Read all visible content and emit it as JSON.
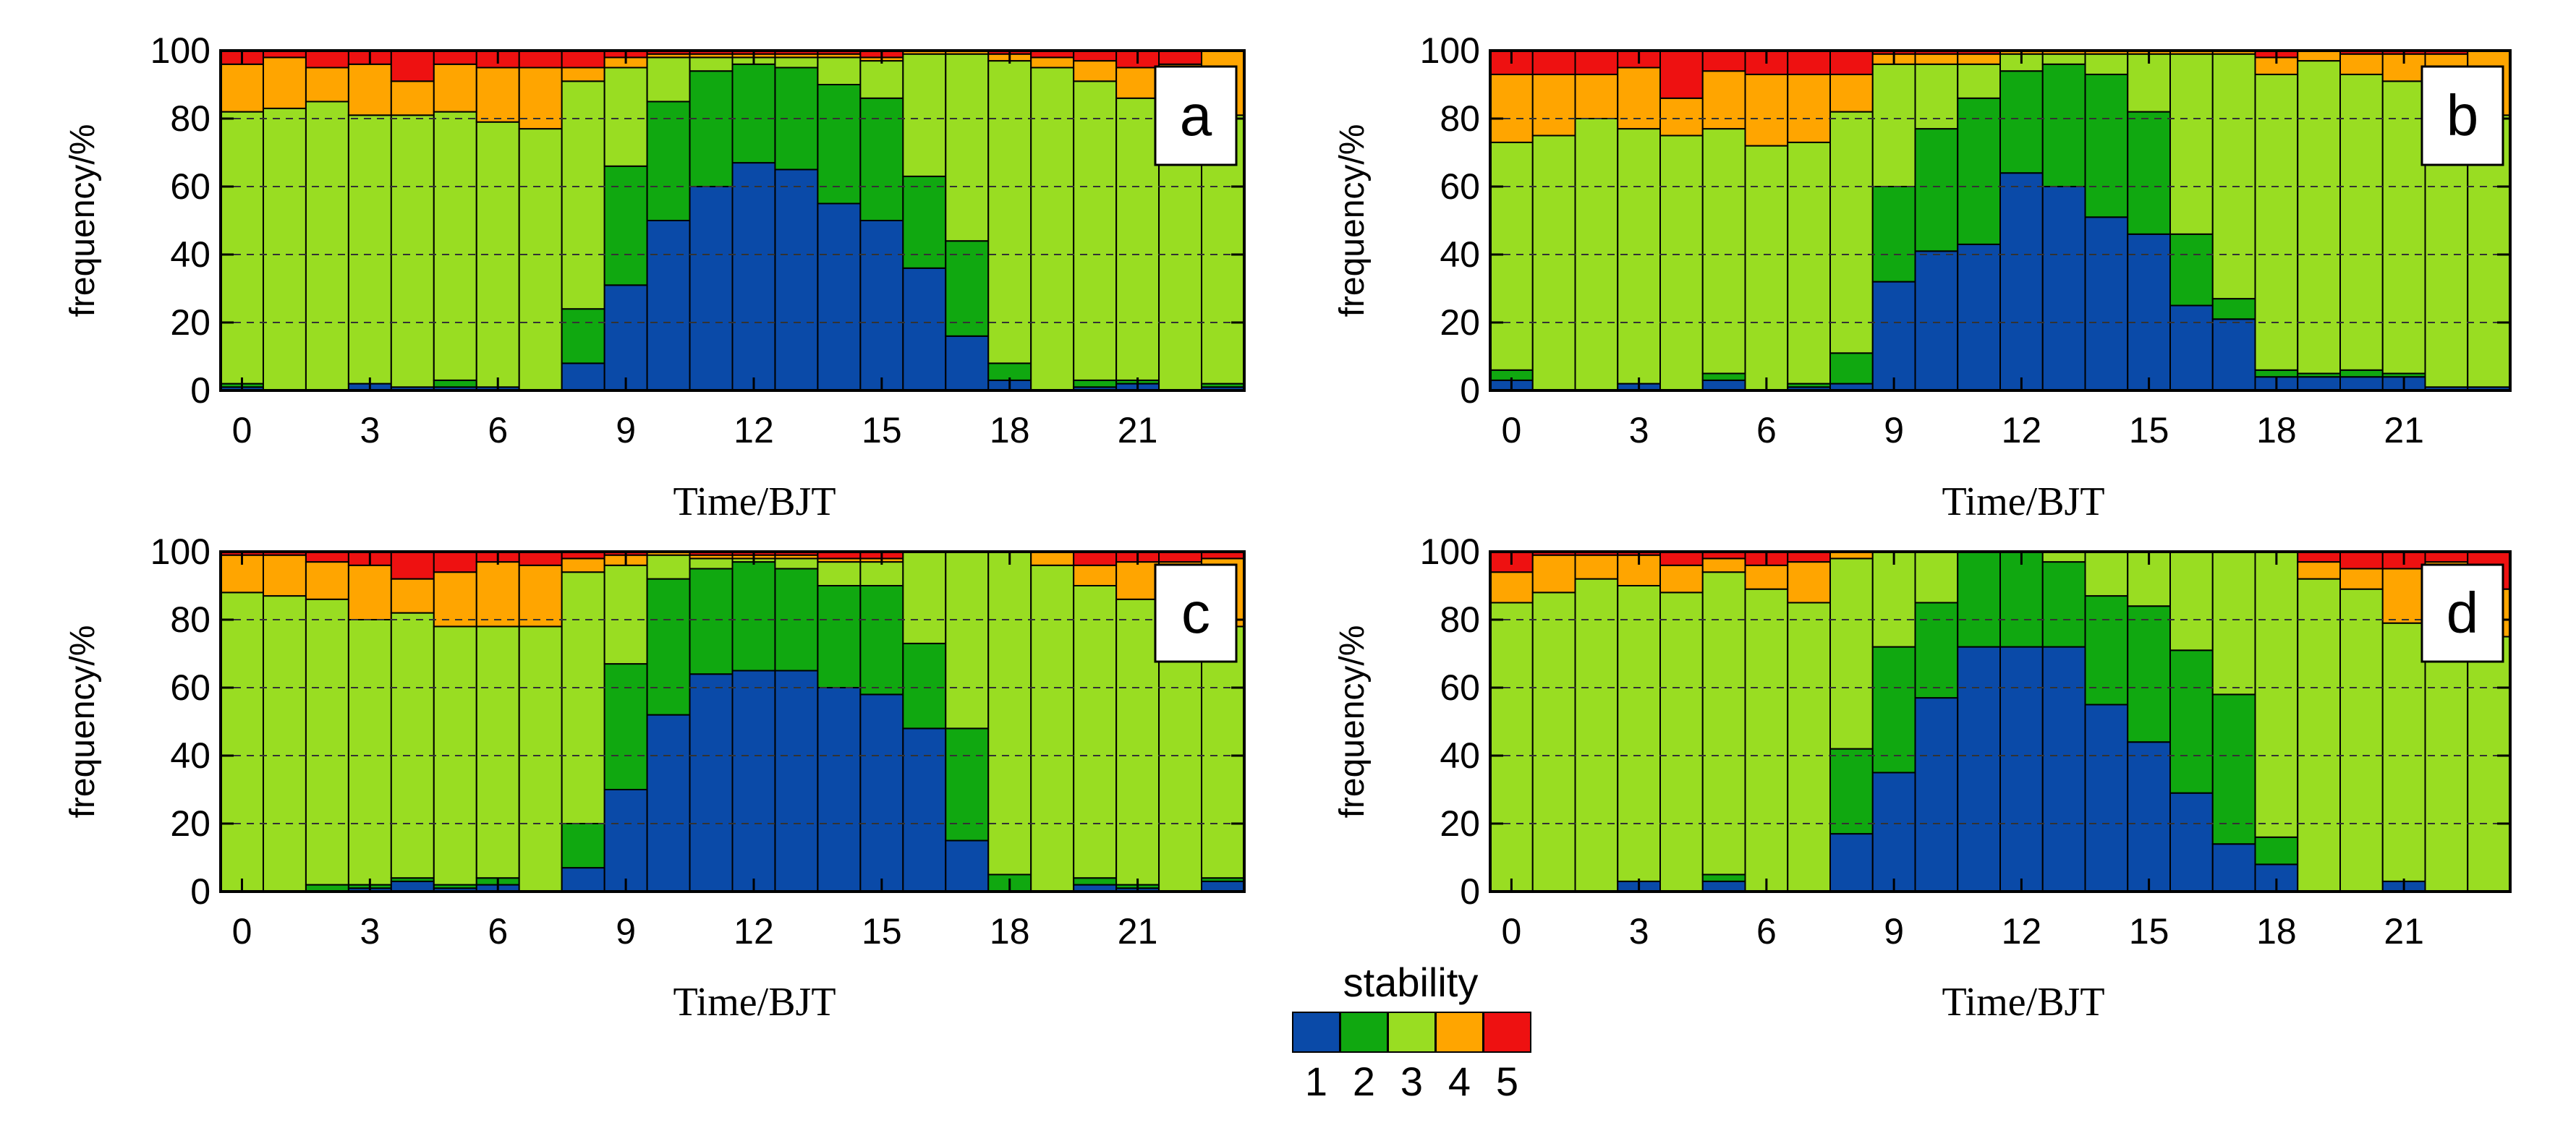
{
  "colors": {
    "1": "#0a4aa8",
    "2": "#10a810",
    "3": "#99dd22",
    "4": "#ffa500",
    "5": "#ee1111"
  },
  "legend": {
    "title": "stability",
    "labels": [
      "1",
      "2",
      "3",
      "4",
      "5"
    ]
  },
  "chart_data": [
    {
      "type": "bar",
      "stacked": true,
      "panel_label": "a",
      "ylabel": "frequency/%",
      "xlabel": "Time/BJT",
      "ylim": [
        0,
        100
      ],
      "yticks": [
        0,
        20,
        40,
        60,
        80,
        100
      ],
      "xticks": [
        0,
        3,
        6,
        9,
        12,
        15,
        18,
        21
      ],
      "categories": [
        0,
        1,
        2,
        3,
        4,
        5,
        6,
        7,
        8,
        9,
        10,
        11,
        12,
        13,
        14,
        15,
        16,
        17,
        18,
        19,
        20,
        21,
        22,
        23
      ],
      "series": [
        {
          "name": "1",
          "values": [
            1,
            0,
            0,
            2,
            1,
            1,
            1,
            0,
            8,
            31,
            50,
            60,
            67,
            65,
            55,
            50,
            36,
            16,
            3,
            0,
            1,
            2,
            0,
            1
          ]
        },
        {
          "name": "2",
          "values": [
            1,
            0,
            0,
            0,
            0,
            2,
            0,
            0,
            16,
            35,
            35,
            34,
            29,
            30,
            35,
            36,
            27,
            28,
            5,
            0,
            2,
            1,
            0,
            1
          ]
        },
        {
          "name": "3",
          "values": [
            80,
            83,
            85,
            79,
            80,
            79,
            78,
            77,
            67,
            29,
            13,
            4,
            2,
            3,
            8,
            11,
            36,
            55,
            89,
            95,
            88,
            83,
            82,
            79
          ]
        },
        {
          "name": "4",
          "values": [
            14,
            15,
            10,
            15,
            10,
            14,
            16,
            18,
            4,
            3,
            1,
            1,
            1,
            1,
            1,
            1,
            1,
            1,
            2,
            3,
            6,
            9,
            14,
            19
          ]
        },
        {
          "name": "5",
          "values": [
            4,
            2,
            5,
            4,
            9,
            4,
            5,
            5,
            5,
            2,
            1,
            1,
            1,
            1,
            1,
            2,
            0,
            0,
            1,
            2,
            3,
            5,
            4,
            0
          ]
        }
      ]
    },
    {
      "type": "bar",
      "stacked": true,
      "panel_label": "b",
      "ylabel": "frequency/%",
      "xlabel": "Time/BJT",
      "ylim": [
        0,
        100
      ],
      "yticks": [
        0,
        20,
        40,
        60,
        80,
        100
      ],
      "xticks": [
        0,
        3,
        6,
        9,
        12,
        15,
        18,
        21
      ],
      "categories": [
        0,
        1,
        2,
        3,
        4,
        5,
        6,
        7,
        8,
        9,
        10,
        11,
        12,
        13,
        14,
        15,
        16,
        17,
        18,
        19,
        20,
        21,
        22,
        23
      ],
      "series": [
        {
          "name": "1",
          "values": [
            3,
            0,
            0,
            2,
            0,
            3,
            0,
            1,
            2,
            32,
            41,
            43,
            64,
            60,
            51,
            46,
            25,
            21,
            4,
            4,
            4,
            4,
            1,
            1
          ]
        },
        {
          "name": "2",
          "values": [
            3,
            0,
            0,
            0,
            0,
            2,
            0,
            1,
            9,
            28,
            36,
            43,
            30,
            36,
            42,
            36,
            21,
            6,
            2,
            1,
            2,
            1,
            0,
            0
          ]
        },
        {
          "name": "3",
          "values": [
            67,
            75,
            80,
            75,
            75,
            72,
            72,
            71,
            71,
            36,
            19,
            10,
            5,
            3,
            6,
            17,
            53,
            72,
            87,
            92,
            87,
            86,
            85,
            80
          ]
        },
        {
          "name": "4",
          "values": [
            20,
            18,
            13,
            18,
            11,
            17,
            21,
            20,
            11,
            3,
            3,
            3,
            1,
            1,
            1,
            1,
            1,
            1,
            5,
            3,
            6,
            8,
            13,
            19
          ]
        },
        {
          "name": "5",
          "values": [
            7,
            7,
            7,
            5,
            14,
            6,
            7,
            7,
            7,
            1,
            1,
            1,
            0,
            0,
            0,
            0,
            0,
            0,
            2,
            0,
            1,
            1,
            1,
            0
          ]
        }
      ]
    },
    {
      "type": "bar",
      "stacked": true,
      "panel_label": "c",
      "ylabel": "frequency/%",
      "xlabel": "Time/BJT",
      "ylim": [
        0,
        100
      ],
      "yticks": [
        0,
        20,
        40,
        60,
        80,
        100
      ],
      "xticks": [
        0,
        3,
        6,
        9,
        12,
        15,
        18,
        21
      ],
      "categories": [
        0,
        1,
        2,
        3,
        4,
        5,
        6,
        7,
        8,
        9,
        10,
        11,
        12,
        13,
        14,
        15,
        16,
        17,
        18,
        19,
        20,
        21,
        22,
        23
      ],
      "series": [
        {
          "name": "1",
          "values": [
            0,
            0,
            0,
            1,
            3,
            1,
            2,
            0,
            7,
            30,
            52,
            64,
            65,
            65,
            60,
            58,
            48,
            15,
            0,
            0,
            2,
            1,
            0,
            3
          ]
        },
        {
          "name": "2",
          "values": [
            0,
            0,
            2,
            1,
            1,
            1,
            2,
            0,
            13,
            37,
            40,
            31,
            32,
            30,
            30,
            32,
            25,
            33,
            5,
            0,
            2,
            1,
            0,
            1
          ]
        },
        {
          "name": "3",
          "values": [
            88,
            87,
            84,
            78,
            78,
            76,
            74,
            78,
            74,
            29,
            7,
            3,
            1,
            3,
            7,
            7,
            27,
            52,
            95,
            96,
            86,
            84,
            80,
            74
          ]
        },
        {
          "name": "4",
          "values": [
            11,
            12,
            11,
            16,
            10,
            16,
            19,
            18,
            4,
            3,
            1,
            1,
            1,
            1,
            1,
            1,
            0,
            0,
            0,
            4,
            6,
            11,
            17,
            20
          ]
        },
        {
          "name": "5",
          "values": [
            1,
            1,
            3,
            4,
            8,
            6,
            3,
            4,
            2,
            1,
            0,
            1,
            1,
            1,
            2,
            2,
            0,
            0,
            0,
            0,
            4,
            3,
            3,
            2
          ]
        }
      ]
    },
    {
      "type": "bar",
      "stacked": true,
      "panel_label": "d",
      "ylabel": "frequency/%",
      "xlabel": "Time/BJT",
      "ylim": [
        0,
        100
      ],
      "yticks": [
        0,
        20,
        40,
        60,
        80,
        100
      ],
      "xticks": [
        0,
        3,
        6,
        9,
        12,
        15,
        18,
        21
      ],
      "categories": [
        0,
        1,
        2,
        3,
        4,
        5,
        6,
        7,
        8,
        9,
        10,
        11,
        12,
        13,
        14,
        15,
        16,
        17,
        18,
        19,
        20,
        21,
        22,
        23
      ],
      "series": [
        {
          "name": "1",
          "values": [
            0,
            0,
            0,
            3,
            0,
            3,
            0,
            0,
            17,
            35,
            57,
            72,
            72,
            72,
            55,
            44,
            29,
            14,
            8,
            0,
            0,
            3,
            0,
            0
          ]
        },
        {
          "name": "2",
          "values": [
            0,
            0,
            0,
            0,
            0,
            2,
            0,
            0,
            25,
            37,
            28,
            28,
            28,
            25,
            32,
            40,
            42,
            44,
            8,
            0,
            0,
            0,
            0,
            0
          ]
        },
        {
          "name": "3",
          "values": [
            85,
            88,
            92,
            87,
            88,
            89,
            89,
            85,
            56,
            28,
            15,
            0,
            0,
            3,
            13,
            16,
            29,
            42,
            84,
            92,
            89,
            76,
            79,
            75
          ]
        },
        {
          "name": "4",
          "values": [
            9,
            11,
            7,
            9,
            8,
            4,
            7,
            12,
            2,
            0,
            0,
            0,
            0,
            0,
            0,
            0,
            0,
            0,
            0,
            5,
            6,
            16,
            18,
            14
          ]
        },
        {
          "name": "5",
          "values": [
            6,
            1,
            1,
            1,
            4,
            2,
            4,
            3,
            0,
            0,
            0,
            0,
            0,
            0,
            0,
            0,
            0,
            0,
            0,
            3,
            5,
            5,
            3,
            11
          ]
        }
      ]
    }
  ]
}
